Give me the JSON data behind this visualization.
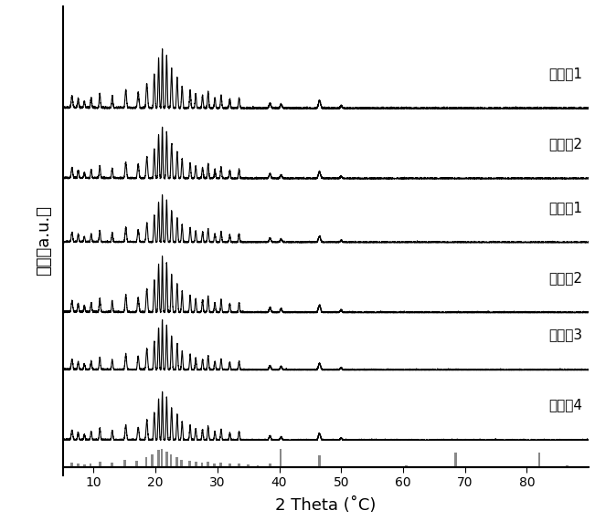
{
  "xlabel": "2 Theta (˚C)",
  "ylabel": "强度（a.u.）",
  "xlim": [
    5,
    90
  ],
  "xticks": [
    10,
    20,
    30,
    40,
    50,
    60,
    70,
    80
  ],
  "label_texts": [
    "对比例1",
    "实施例2",
    "实施例1",
    "对比例2",
    "对比例3",
    "对比例4"
  ],
  "offsets": [
    5.2,
    4.1,
    3.1,
    2.0,
    1.1,
    0.0
  ],
  "line_color": "#000000",
  "ref_bar_color": "#888888",
  "ref_peaks": [
    6.5,
    7.5,
    8.5,
    9.5,
    11.0,
    13.0,
    15.0,
    17.0,
    18.5,
    19.5,
    20.5,
    21.0,
    21.8,
    22.5,
    23.5,
    24.2,
    25.5,
    26.5,
    27.5,
    28.5,
    29.5,
    30.5,
    32.0,
    33.5,
    35.0,
    36.5,
    38.5,
    40.2,
    46.5,
    60.5,
    68.5,
    82.0,
    86.5
  ],
  "ref_heights_raw": [
    0.25,
    0.2,
    0.15,
    0.2,
    0.3,
    0.25,
    0.4,
    0.35,
    0.55,
    0.7,
    0.95,
    1.0,
    0.85,
    0.7,
    0.55,
    0.4,
    0.35,
    0.3,
    0.25,
    0.3,
    0.22,
    0.25,
    0.18,
    0.22,
    0.15,
    0.12,
    0.2,
    1.0,
    0.65,
    0.1,
    0.8,
    0.8,
    0.12
  ],
  "xlabel_fontsize": 13,
  "ylabel_fontsize": 13,
  "tick_fontsize": 12,
  "label_fontsize": 11,
  "line_width": 0.8,
  "noise_level": 0.008,
  "bar_max_height": 0.28,
  "bar_y_base": -0.42,
  "ylim_min": -0.55,
  "ylim_max": 6.8
}
